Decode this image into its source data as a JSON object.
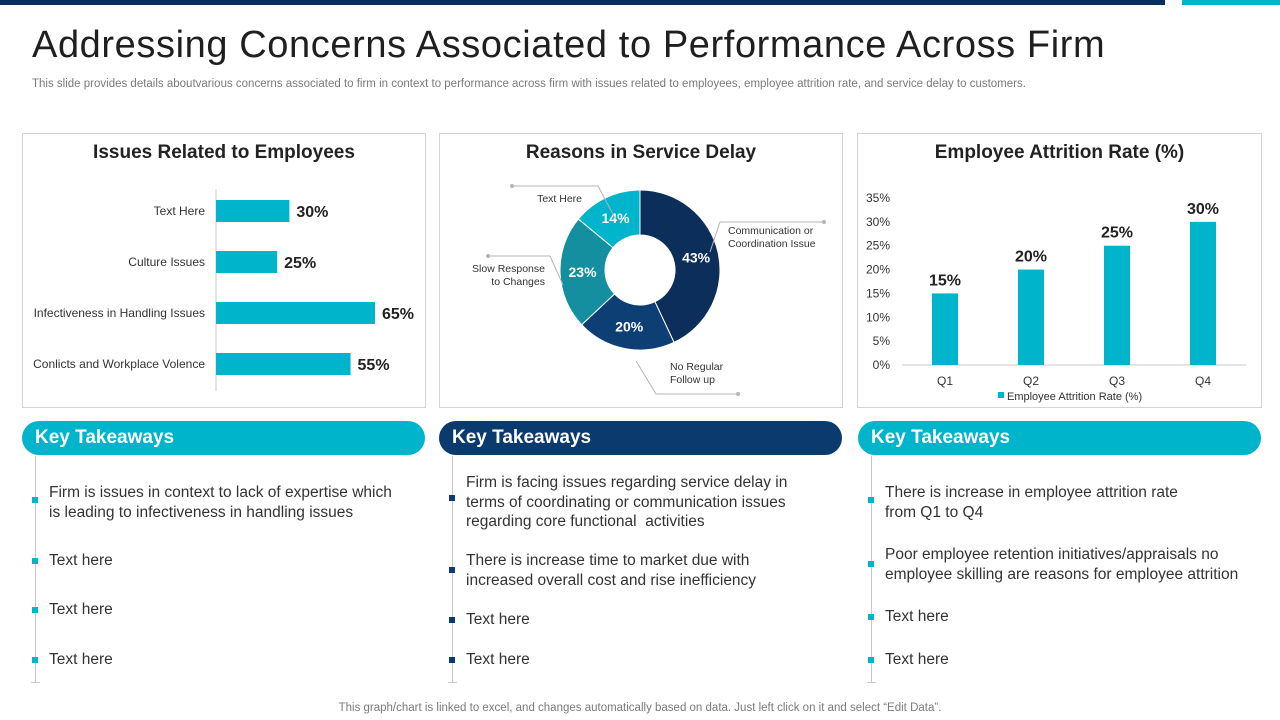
{
  "page": {
    "title": "Addressing Concerns Associated to Performance Across Firm",
    "subtitle": "This slide provides details aboutvarious concerns associated to firm in context to performance across firm with issues related to employees, employee attrition rate, and service delay to customers.",
    "footer": "This graph/chart is linked to excel, and changes automatically based on data. Just left click on it and select “Edit Data”."
  },
  "colors": {
    "accent": "#00b4cc",
    "dark": "#0a2f5c",
    "navy": "#0b2e5a",
    "teal": "#148fa0"
  },
  "chart_data": [
    {
      "type": "bar",
      "orientation": "horizontal",
      "title": "Issues Related to Employees",
      "categories": [
        "Text Here",
        "Culture Issues",
        "Infectiveness in Handling Issues",
        "Conlicts and Workplace Volence"
      ],
      "values": [
        30,
        25,
        65,
        55
      ],
      "value_labels": [
        "30%",
        "25%",
        "65%",
        "55%"
      ],
      "xlim": [
        0,
        65
      ]
    },
    {
      "type": "pie",
      "variant": "donut",
      "title": "Reasons in Service Delay",
      "segments": [
        {
          "name": "Communication or Coordination Issue",
          "value": 43,
          "label": "43%",
          "color": "#0b2e5a"
        },
        {
          "name": "No Regular Follow up",
          "value": 20,
          "label": "20%",
          "color": "#0e3f74"
        },
        {
          "name": "Slow Response to Changes",
          "value": 23,
          "label": "23%",
          "color": "#148fa0"
        },
        {
          "name": "Text Here",
          "value": 14,
          "label": "14%",
          "color": "#00b4cc"
        }
      ],
      "annotations": {
        "communication": [
          "Communication  or",
          "Coordination Issue"
        ],
        "no_regular": [
          "No Regular",
          "Follow up"
        ],
        "slow_response": [
          "Slow Response",
          "to Changes"
        ],
        "text_here": [
          "Text Here"
        ]
      }
    },
    {
      "type": "bar",
      "title": "Employee Attrition Rate (%)",
      "categories": [
        "Q1",
        "Q2",
        "Q3",
        "Q4"
      ],
      "values": [
        15,
        20,
        25,
        30
      ],
      "value_labels": [
        "15%",
        "20%",
        "25%",
        "30%"
      ],
      "ylim": [
        0,
        35
      ],
      "yticks": [
        "0%",
        "5%",
        "10%",
        "15%",
        "20%",
        "25%",
        "30%",
        "35%"
      ],
      "legend": "Employee Attrition Rate (%)",
      "legend_position": "bottom"
    }
  ],
  "takeaways": [
    {
      "heading": "Key Takeaways",
      "items": [
        "Firm is issues in context to lack of expertise which\nis leading to infectiveness in handling issues",
        "Text here",
        "Text here",
        "Text here"
      ]
    },
    {
      "heading": "Key Takeaways",
      "items": [
        "Firm is facing issues regarding service delay in\nterms of coordinating or communication issues\nregarding core functional  activities",
        "There is increase time to market due with\nincreased overall cost and rise inefficiency",
        "Text here",
        "Text here"
      ]
    },
    {
      "heading": "Key Takeaways",
      "items": [
        "There is increase in employee attrition rate\nfrom Q1 to Q4",
        "Poor employee retention initiatives/appraisals no\nemployee skilling are reasons for employee attrition",
        "Text here",
        "Text here"
      ]
    }
  ]
}
